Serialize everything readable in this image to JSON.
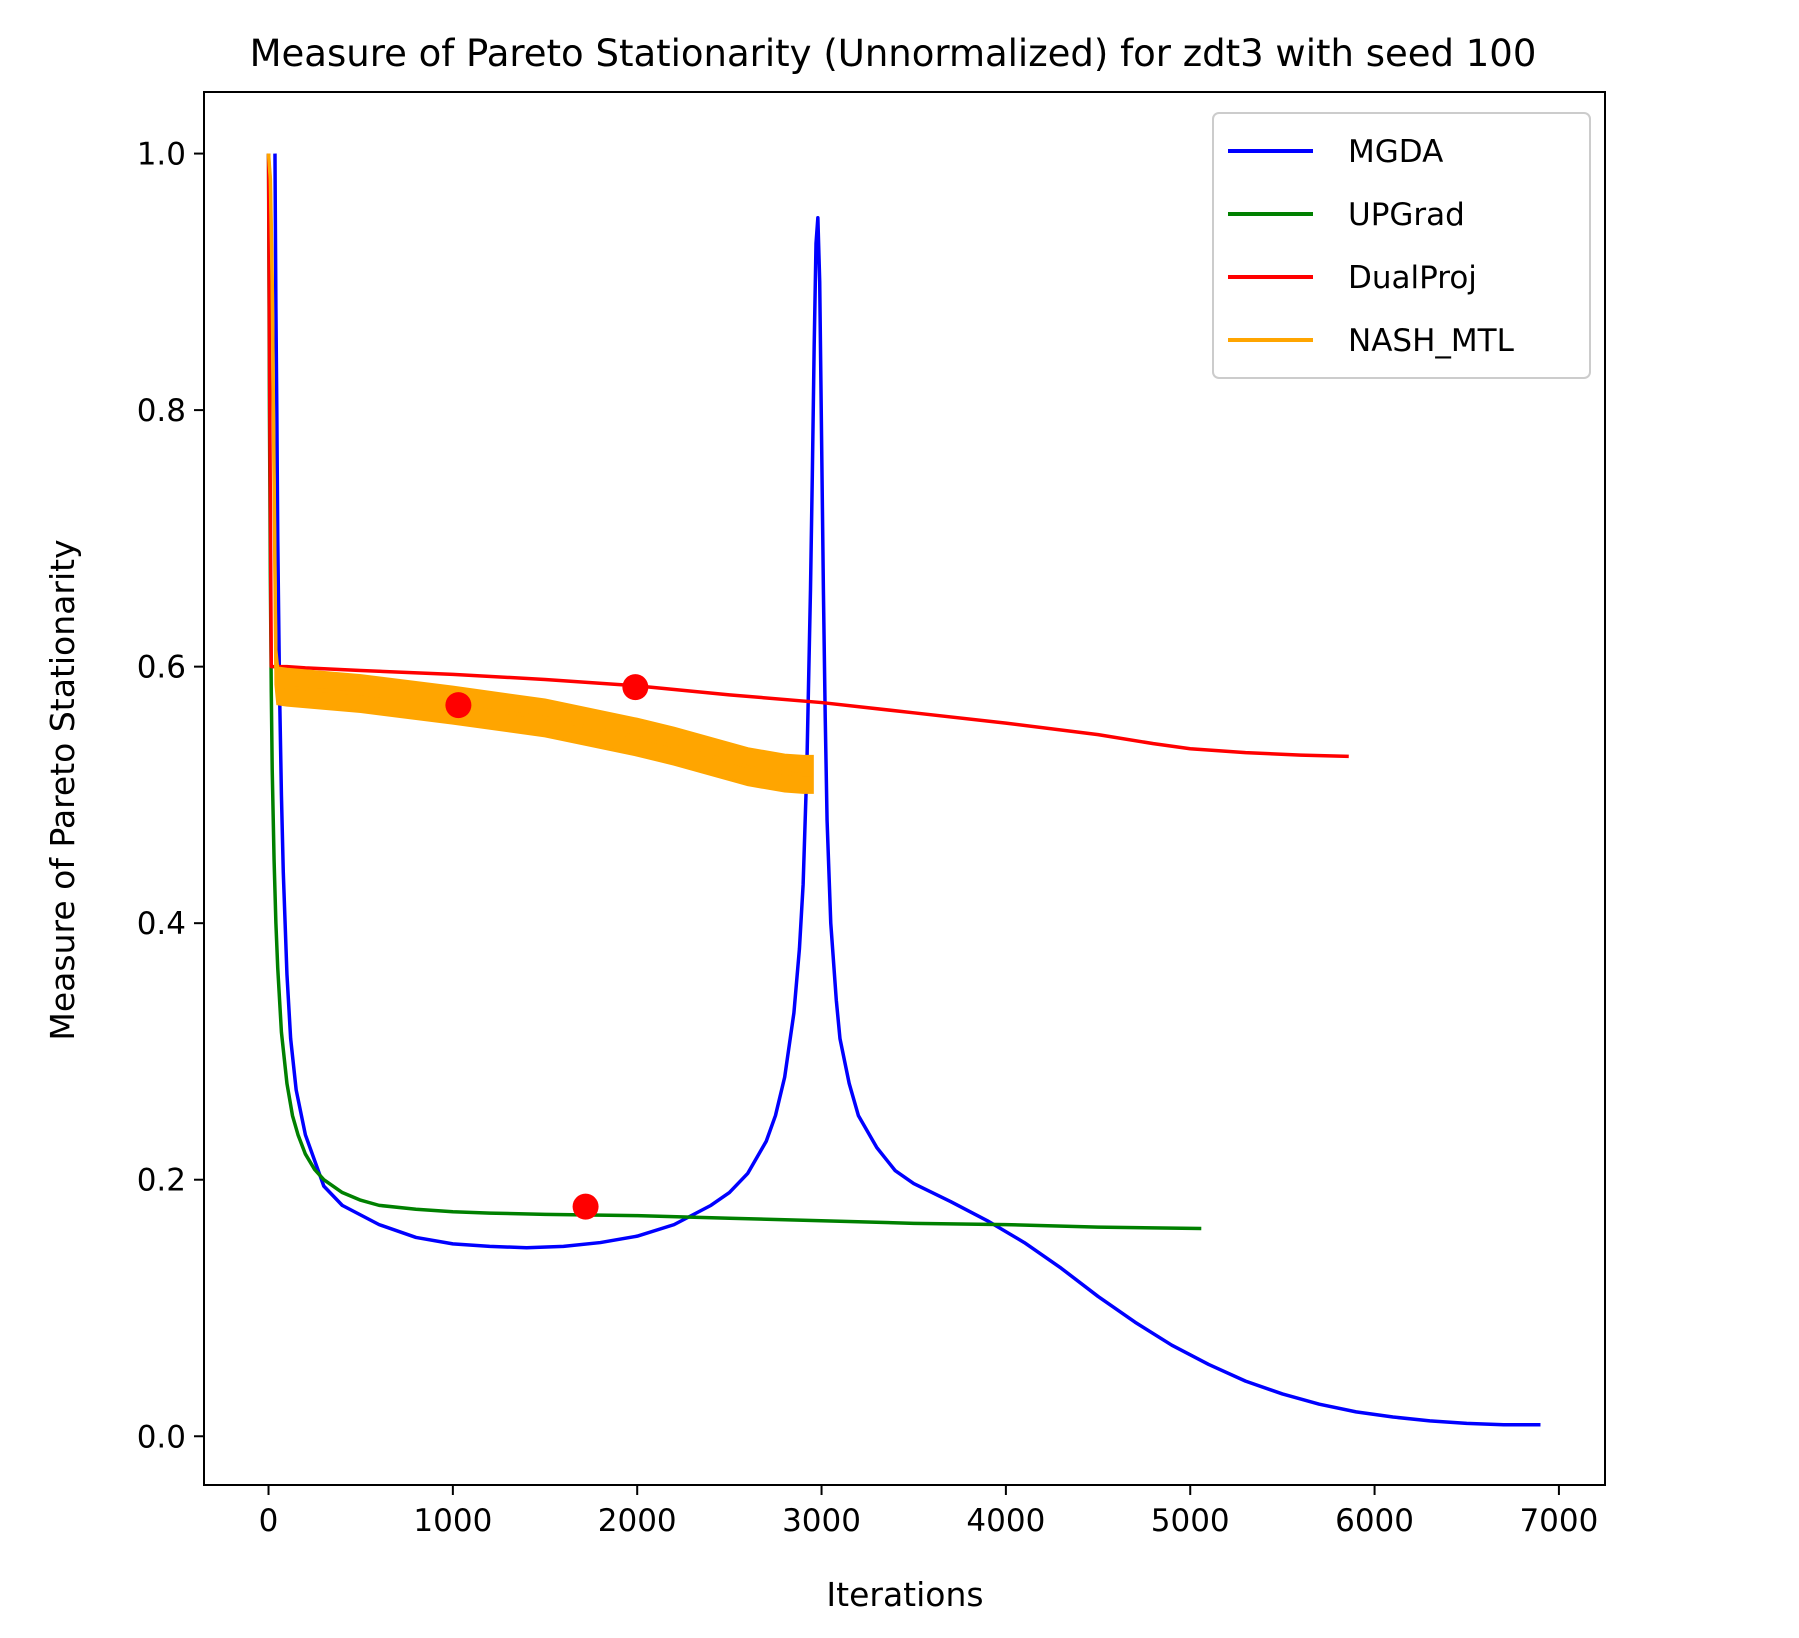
{
  "chart_data": {
    "type": "line",
    "title": "Measure of Pareto Stationarity (Unnormalized) for zdt3 with seed 100",
    "xlabel": "Iterations",
    "ylabel": "Measure of Pareto Stationarity",
    "xlim": [
      -350,
      7250
    ],
    "ylim": [
      -0.038,
      1.048
    ],
    "xticks": [
      0,
      1000,
      2000,
      3000,
      4000,
      5000,
      6000,
      7000
    ],
    "xtick_labels": [
      "0",
      "1000",
      "2000",
      "3000",
      "4000",
      "5000",
      "6000",
      "7000"
    ],
    "yticks": [
      0.0,
      0.2,
      0.4,
      0.6,
      0.8,
      1.0
    ],
    "ytick_labels": [
      "0.0",
      "0.2",
      "0.4",
      "0.6",
      "0.8",
      "1.0"
    ],
    "grid": false,
    "legend_position": "top-right",
    "series": [
      {
        "name": "MGDA",
        "color": "#0000ff",
        "x": [
          35,
          37,
          40,
          45,
          50,
          60,
          70,
          80,
          100,
          120,
          150,
          200,
          300,
          400,
          600,
          800,
          1000,
          1200,
          1400,
          1600,
          1800,
          2000,
          2200,
          2400,
          2500,
          2600,
          2700,
          2750,
          2800,
          2850,
          2880,
          2900,
          2920,
          2940,
          2950,
          2960,
          2970,
          2980,
          2990,
          3000,
          3010,
          3020,
          3030,
          3050,
          3080,
          3100,
          3150,
          3200,
          3300,
          3400,
          3500,
          3700,
          3900,
          4100,
          4300,
          4500,
          4700,
          4900,
          5100,
          5300,
          5500,
          5700,
          5900,
          6100,
          6300,
          6500,
          6700,
          6900
        ],
        "y": [
          1.0,
          0.95,
          0.88,
          0.8,
          0.7,
          0.58,
          0.5,
          0.44,
          0.36,
          0.31,
          0.27,
          0.235,
          0.195,
          0.18,
          0.165,
          0.155,
          0.15,
          0.148,
          0.147,
          0.148,
          0.151,
          0.156,
          0.165,
          0.18,
          0.19,
          0.205,
          0.23,
          0.25,
          0.28,
          0.33,
          0.38,
          0.43,
          0.52,
          0.66,
          0.75,
          0.85,
          0.93,
          0.95,
          0.9,
          0.78,
          0.66,
          0.56,
          0.48,
          0.4,
          0.34,
          0.31,
          0.275,
          0.25,
          0.225,
          0.207,
          0.197,
          0.183,
          0.168,
          0.151,
          0.131,
          0.109,
          0.089,
          0.071,
          0.056,
          0.043,
          0.033,
          0.025,
          0.019,
          0.015,
          0.012,
          0.01,
          0.009,
          0.009
        ]
      },
      {
        "name": "UPGrad",
        "color": "#008000",
        "x": [
          0,
          5,
          10,
          15,
          20,
          30,
          40,
          50,
          70,
          100,
          130,
          160,
          200,
          250,
          300,
          400,
          500,
          600,
          800,
          1000,
          1200,
          1500,
          2000,
          2500,
          3000,
          3500,
          4000,
          4500,
          5060
        ],
        "y": [
          1.0,
          0.8,
          0.67,
          0.58,
          0.52,
          0.45,
          0.4,
          0.365,
          0.315,
          0.275,
          0.25,
          0.235,
          0.22,
          0.208,
          0.2,
          0.19,
          0.184,
          0.18,
          0.177,
          0.175,
          0.174,
          0.173,
          0.172,
          0.17,
          0.168,
          0.166,
          0.165,
          0.163,
          0.162
        ]
      },
      {
        "name": "DualProj",
        "color": "#ff0000",
        "x": [
          0,
          5,
          15,
          30,
          50,
          80,
          100,
          200,
          500,
          1000,
          1500,
          2000,
          2500,
          3000,
          3500,
          4000,
          4500,
          4800,
          5000,
          5300,
          5600,
          5860
        ],
        "y": [
          1.0,
          0.85,
          0.6,
          0.6,
          0.6,
          0.6,
          0.6,
          0.599,
          0.597,
          0.594,
          0.59,
          0.585,
          0.578,
          0.572,
          0.564,
          0.556,
          0.547,
          0.54,
          0.536,
          0.533,
          0.531,
          0.53
        ]
      },
      {
        "name": "NASH_MTL",
        "color": "#ffa500",
        "x": [
          0,
          10,
          20,
          30,
          40,
          50,
          100,
          500,
          1000,
          1500,
          2000,
          2200,
          2400,
          2600,
          2800,
          2900,
          2950
        ],
        "y": [
          1.0,
          0.98,
          0.9,
          0.75,
          0.6,
          0.585,
          0.584,
          0.579,
          0.57,
          0.56,
          0.545,
          0.538,
          0.53,
          0.522,
          0.517,
          0.516,
          0.516
        ],
        "band_halfwidth": 0.014
      }
    ],
    "markers": [
      {
        "x": 1030,
        "y": 0.57,
        "color": "#ff0000"
      },
      {
        "x": 1990,
        "y": 0.584,
        "color": "#ff0000"
      },
      {
        "x": 1720,
        "y": 0.179,
        "color": "#ff0000"
      }
    ]
  }
}
